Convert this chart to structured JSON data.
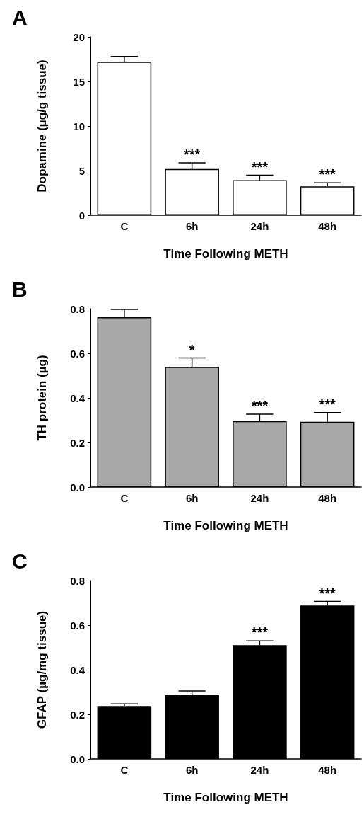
{
  "chart_data": [
    {
      "type": "bar",
      "title": "A",
      "xlabel": "Time Following METH",
      "ylabel": "Dopamine (µg/g tissue)",
      "categories": [
        "C",
        "6h",
        "24h",
        "48h"
      ],
      "series": [
        {
          "color": "#ffffff",
          "values": [
            17.2,
            5.17,
            3.92,
            3.23
          ],
          "errors": [
            [
              17.2,
              17.8
            ],
            [
              5.17,
              5.88
            ],
            [
              3.92,
              4.48
            ],
            [
              3.23,
              3.63
            ]
          ]
        }
      ],
      "ylim": [
        0,
        20
      ],
      "yticks": [
        0,
        5,
        10,
        15,
        20
      ],
      "annotations": [
        {
          "text": "***",
          "x": "6h",
          "y": 5.88
        },
        {
          "text": "***",
          "x": "24h",
          "y": 4.48
        },
        {
          "text": "***",
          "x": "48h",
          "y": 3.63
        }
      ]
    },
    {
      "type": "bar",
      "title": "B",
      "xlabel": "Time Following METH",
      "ylabel": "TH protein (µg)",
      "categories": [
        "C",
        "6h",
        "24h",
        "48h"
      ],
      "series": [
        {
          "color": "#a8a8a8",
          "values": [
            0.762,
            0.539,
            0.296,
            0.293
          ],
          "errors": [
            [
              0.762,
              0.797
            ],
            [
              0.539,
              0.579
            ],
            [
              0.296,
              0.327
            ],
            [
              0.293,
              0.334
            ]
          ]
        }
      ],
      "ylim": [
        0,
        0.8
      ],
      "yticks": [
        {
          "value": 0,
          "label": "0.0"
        },
        0.2,
        0.4,
        0.6,
        0.8
      ],
      "annotations": [
        {
          "text": "*",
          "x": "6h",
          "y": 0.579
        },
        {
          "text": "***",
          "x": "24h",
          "y": 0.327
        },
        {
          "text": "***",
          "x": "48h",
          "y": 0.334
        }
      ]
    },
    {
      "type": "bar",
      "title": "C",
      "xlabel": "Time Following METH",
      "ylabel": "GFAP (µg/mg tissue)",
      "categories": [
        "C",
        "6h",
        "24h",
        "48h"
      ],
      "series": [
        {
          "color": "#000000",
          "values": [
            0.237,
            0.286,
            0.51,
            0.688
          ],
          "errors": [
            [
              0.237,
              0.247
            ],
            [
              0.286,
              0.305
            ],
            [
              0.51,
              0.529
            ],
            [
              0.688,
              0.706
            ]
          ]
        }
      ],
      "ylim": [
        0,
        0.8
      ],
      "yticks": [
        {
          "value": 0,
          "label": "0.0"
        },
        0.2,
        0.4,
        0.6,
        0.8
      ],
      "annotations": [
        {
          "text": "***",
          "x": "24h",
          "y": 0.529
        },
        {
          "text": "***",
          "x": "48h",
          "y": 0.706
        }
      ]
    }
  ]
}
